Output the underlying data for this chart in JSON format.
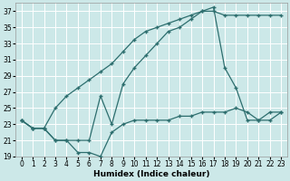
{
  "background_color": "#cce8e8",
  "grid_color": "#ffffff",
  "line_color": "#2d6e6e",
  "xlabel": "Humidex (Indice chaleur)",
  "xlim": [
    -0.5,
    23.5
  ],
  "ylim": [
    19,
    38
  ],
  "yticks": [
    19,
    21,
    23,
    25,
    27,
    29,
    31,
    33,
    35,
    37
  ],
  "xticks": [
    0,
    1,
    2,
    3,
    4,
    5,
    6,
    7,
    8,
    9,
    10,
    11,
    12,
    13,
    14,
    15,
    16,
    17,
    18,
    19,
    20,
    21,
    22,
    23
  ],
  "curve2_x": [
    0,
    1,
    2,
    3,
    4,
    5,
    6,
    7,
    8,
    9,
    10,
    11,
    12,
    13,
    14,
    15,
    16,
    17,
    18,
    19,
    20,
    21,
    22,
    23
  ],
  "curve2_y": [
    23.5,
    22.5,
    22.5,
    21.0,
    21.0,
    21.0,
    21.0,
    26.5,
    23.0,
    28.0,
    30.0,
    31.5,
    33.0,
    34.5,
    35.0,
    36.0,
    37.0,
    37.5,
    30.0,
    27.5,
    23.5,
    23.5,
    24.5,
    24.5
  ],
  "curve3_x": [
    0,
    1,
    2,
    3,
    4,
    5,
    6,
    7,
    8,
    9,
    10,
    11,
    12,
    13,
    14,
    15,
    16,
    17,
    18,
    19,
    20,
    21,
    22,
    23
  ],
  "curve3_y": [
    23.5,
    22.5,
    22.5,
    21.0,
    21.0,
    19.5,
    19.5,
    19.0,
    22.0,
    23.0,
    23.5,
    23.5,
    23.5,
    23.5,
    24.0,
    24.0,
    24.5,
    24.5,
    24.5,
    25.0,
    24.5,
    23.5,
    23.5,
    24.5
  ],
  "diag_x": [
    0,
    1,
    2,
    3,
    4,
    5,
    6,
    7,
    8,
    9,
    10,
    11,
    12,
    13,
    14,
    15,
    16,
    17,
    18,
    19,
    20,
    21,
    22,
    23
  ],
  "diag_y": [
    23.5,
    22.5,
    22.5,
    25.0,
    26.5,
    27.5,
    28.5,
    29.5,
    30.5,
    32.0,
    33.5,
    34.5,
    35.0,
    35.5,
    36.0,
    36.5,
    37.0,
    37.0,
    36.5,
    36.5,
    36.5,
    36.5,
    36.5,
    36.5
  ]
}
